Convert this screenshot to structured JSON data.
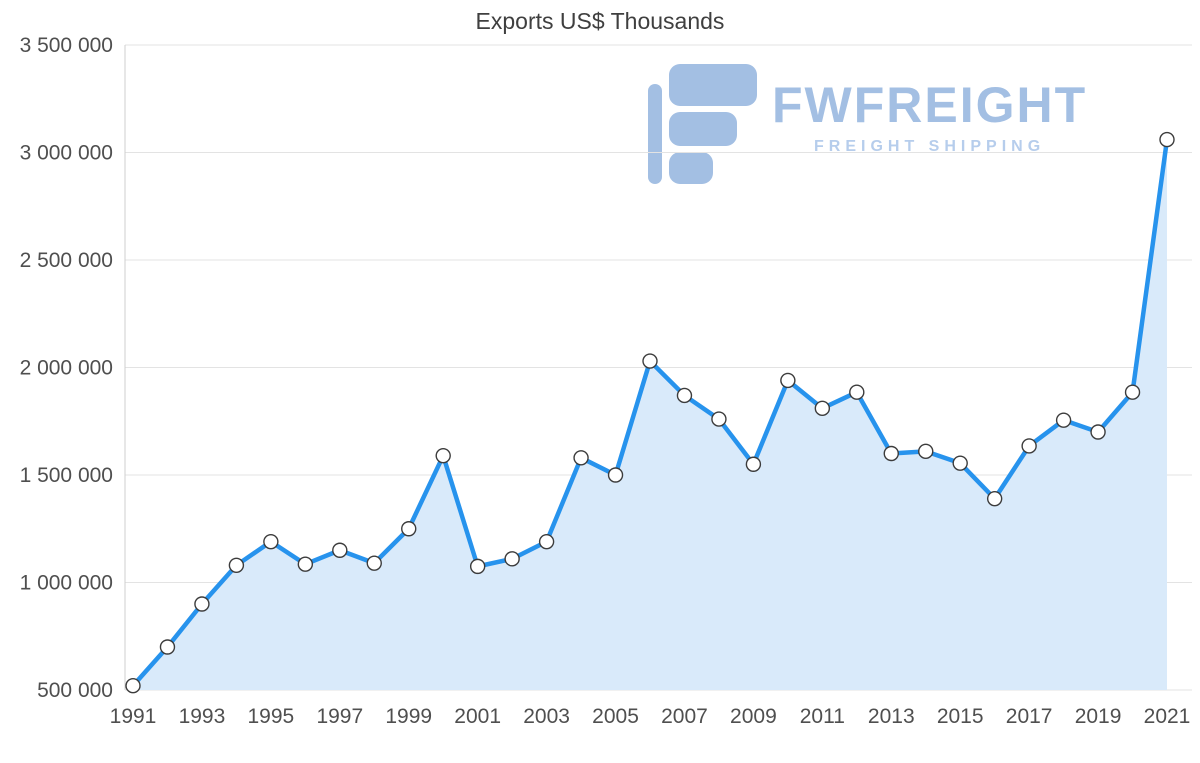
{
  "chart_data": {
    "type": "area",
    "title": "Exports US$ Thousands",
    "x": [
      1991,
      1992,
      1993,
      1994,
      1995,
      1996,
      1997,
      1998,
      1999,
      2000,
      2001,
      2002,
      2003,
      2004,
      2005,
      2006,
      2007,
      2008,
      2009,
      2010,
      2011,
      2012,
      2013,
      2014,
      2015,
      2016,
      2017,
      2018,
      2019,
      2020,
      2021
    ],
    "values": [
      520000,
      700000,
      900000,
      1080000,
      1190000,
      1085000,
      1150000,
      1090000,
      1250000,
      1590000,
      1075000,
      1110000,
      1190000,
      1580000,
      1500000,
      2030000,
      1870000,
      1760000,
      1550000,
      1940000,
      1810000,
      1885000,
      1600000,
      1610000,
      1555000,
      1390000,
      1635000,
      1755000,
      1700000,
      1885000,
      3060000
    ],
    "ylim": [
      500000,
      3500000
    ],
    "y_ticks": [
      500000,
      1000000,
      1500000,
      2000000,
      2500000,
      3000000,
      3500000
    ],
    "y_tick_labels": [
      "500 000",
      "1 000 000",
      "1 500 000",
      "2 000 000",
      "2 500 000",
      "3 000 000",
      "3 500 000"
    ],
    "x_tick_labels": [
      "1991",
      "1993",
      "1995",
      "1997",
      "1999",
      "2001",
      "2003",
      "2005",
      "2007",
      "2009",
      "2011",
      "2013",
      "2015",
      "2017",
      "2019",
      "2021"
    ],
    "grid": "horizontal",
    "legend": "none",
    "line_color": "#2793ed",
    "fill_color": "#d9eafa",
    "marker_fill": "#ffffff",
    "marker_stroke": "#3c3c3c",
    "grid_color": "#e3e3e3",
    "axis_color": "#cfcfcf"
  },
  "watermark": {
    "brand": "FWFREIGHT",
    "subtitle": "FREIGHT SHIPPING",
    "color": "#a3bfe3"
  }
}
